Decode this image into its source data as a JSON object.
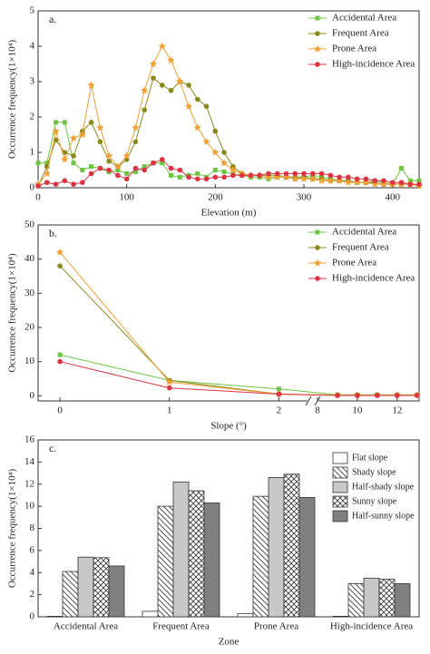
{
  "chart_data": [
    {
      "type": "line",
      "panel_label": "a.",
      "xlabel": "Elevation (m)",
      "ylabel": "Occurrence frequency(1×10⁴)",
      "xlim": [
        0,
        430
      ],
      "xticks": [
        0,
        100,
        200,
        300,
        400
      ],
      "ylim": [
        0,
        5
      ],
      "yticks": [
        0,
        1,
        2,
        3,
        4,
        5
      ],
      "x": [
        0,
        10,
        20,
        30,
        40,
        50,
        60,
        70,
        80,
        90,
        100,
        110,
        120,
        130,
        140,
        150,
        160,
        170,
        180,
        190,
        200,
        210,
        220,
        230,
        240,
        250,
        260,
        270,
        280,
        290,
        300,
        310,
        320,
        330,
        340,
        350,
        360,
        370,
        380,
        390,
        400,
        410,
        420,
        430
      ],
      "legend": "upper right",
      "series": [
        {
          "name": "Accidental Area",
          "color": "#6cc644",
          "marker": "square",
          "values": [
            0.7,
            0.7,
            1.85,
            1.85,
            0.7,
            0.5,
            0.6,
            0.55,
            0.45,
            0.5,
            0.4,
            0.45,
            0.6,
            0.7,
            0.7,
            0.35,
            0.3,
            0.35,
            0.4,
            0.3,
            0.5,
            0.45,
            0.4,
            0.35,
            0.3,
            0.3,
            0.25,
            0.3,
            0.3,
            0.25,
            0.3,
            0.35,
            0.3,
            0.25,
            0.2,
            0.2,
            0.15,
            0.15,
            0.2,
            0.15,
            0.1,
            0.55,
            0.2,
            0.2
          ]
        },
        {
          "name": "Frequent Area",
          "color": "#8a8a1c",
          "marker": "circle",
          "values": [
            0.05,
            0.6,
            1.35,
            1.0,
            0.9,
            1.6,
            1.85,
            1.3,
            0.75,
            0.6,
            0.8,
            1.3,
            2.2,
            3.1,
            2.9,
            2.75,
            3.0,
            2.9,
            2.5,
            2.3,
            1.6,
            1.0,
            0.6,
            0.4,
            0.35,
            0.35,
            0.35,
            0.35,
            0.3,
            0.3,
            0.3,
            0.25,
            0.25,
            0.2,
            0.2,
            0.2,
            0.15,
            0.15,
            0.15,
            0.1,
            0.1,
            0.1,
            0.1,
            0.05
          ]
        },
        {
          "name": "Prone Area",
          "color": "#f0a035",
          "marker": "star",
          "values": [
            0.1,
            0.4,
            1.6,
            0.8,
            1.4,
            1.5,
            2.9,
            1.7,
            0.9,
            0.6,
            0.9,
            1.7,
            2.75,
            3.5,
            4.0,
            3.6,
            3.0,
            2.3,
            1.7,
            1.3,
            1.0,
            0.7,
            0.5,
            0.4,
            0.35,
            0.35,
            0.3,
            0.3,
            0.3,
            0.25,
            0.25,
            0.25,
            0.2,
            0.2,
            0.2,
            0.15,
            0.15,
            0.15,
            0.1,
            0.1,
            0.1,
            0.1,
            0.1,
            0.05
          ]
        },
        {
          "name": "High-incidence Area",
          "color": "#dd3344",
          "marker": "circle",
          "values": [
            0.05,
            0.15,
            0.1,
            0.2,
            0.1,
            0.15,
            0.4,
            0.55,
            0.5,
            0.35,
            0.25,
            0.55,
            0.5,
            0.7,
            0.8,
            0.55,
            0.5,
            0.3,
            0.25,
            0.25,
            0.3,
            0.3,
            0.35,
            0.35,
            0.35,
            0.35,
            0.4,
            0.4,
            0.4,
            0.4,
            0.4,
            0.4,
            0.4,
            0.35,
            0.3,
            0.3,
            0.25,
            0.25,
            0.2,
            0.2,
            0.15,
            0.15,
            0.1,
            0.1
          ]
        }
      ]
    },
    {
      "type": "line",
      "panel_label": "b.",
      "xlabel": "Slope (°)",
      "ylabel": "Occurrence frequency(1×10⁴)",
      "xsegments": [
        {
          "xlim": [
            -0.2,
            2.27
          ]
        },
        {
          "xlim": [
            8,
            13.1
          ]
        }
      ],
      "xticks": [
        0,
        1,
        2,
        8,
        10,
        12
      ],
      "ylim": [
        -1.5,
        50
      ],
      "yticks": [
        0,
        10,
        20,
        30,
        40,
        50
      ],
      "legend": "upper right",
      "x": [
        0,
        1,
        2,
        9,
        10,
        11,
        12,
        13
      ],
      "series": [
        {
          "name": "Accidental Area",
          "color": "#6cc644",
          "marker": "square",
          "values": [
            12,
            4.5,
            2,
            0.3,
            0.3,
            0.3,
            0.3,
            0.3
          ]
        },
        {
          "name": "Frequent Area",
          "color": "#8a8a1c",
          "marker": "circle",
          "values": [
            38,
            4.5,
            0.5,
            0.2,
            0.2,
            0.2,
            0.2,
            0.2
          ]
        },
        {
          "name": "Prone Area",
          "color": "#f0a035",
          "marker": "star",
          "values": [
            42,
            4,
            0.5,
            0.2,
            0.2,
            0.2,
            0.2,
            0.2
          ]
        },
        {
          "name": "High-incidence Area",
          "color": "#dd3344",
          "marker": "circle",
          "values": [
            10,
            2.3,
            0.5,
            0.1,
            0.1,
            0.1,
            0.1,
            0.1
          ]
        }
      ]
    },
    {
      "type": "bar",
      "panel_label": "c.",
      "xlabel": "Zone",
      "ylabel": "Occurrence frequency(1×10⁴)",
      "categories": [
        "Accidental Area",
        "Frequent Area",
        "Prone Area",
        "High-incidence Area"
      ],
      "ylim": [
        0,
        16
      ],
      "yticks": [
        0,
        2,
        4,
        6,
        8,
        10,
        12,
        14,
        16
      ],
      "legend": "upper right",
      "series": [
        {
          "name": "Flat slope",
          "color": "#ffffff",
          "pattern": "none",
          "values": [
            0.05,
            0.5,
            0.3,
            0.05
          ]
        },
        {
          "name": "Shady slope",
          "color": "#ffffff",
          "pattern": "diagonal",
          "values": [
            4.1,
            10,
            10.9,
            3.0
          ]
        },
        {
          "name": "Half-shady slope",
          "color": "#c8c8c8",
          "pattern": "none",
          "values": [
            5.4,
            12.2,
            12.6,
            3.5
          ]
        },
        {
          "name": "Sunny slope",
          "color": "#ffffff",
          "pattern": "cross",
          "values": [
            5.35,
            11.4,
            12.9,
            3.4
          ]
        },
        {
          "name": "Half-sunny slope",
          "color": "#808080",
          "pattern": "none",
          "values": [
            4.6,
            10.3,
            10.8,
            3.0
          ]
        }
      ]
    }
  ]
}
